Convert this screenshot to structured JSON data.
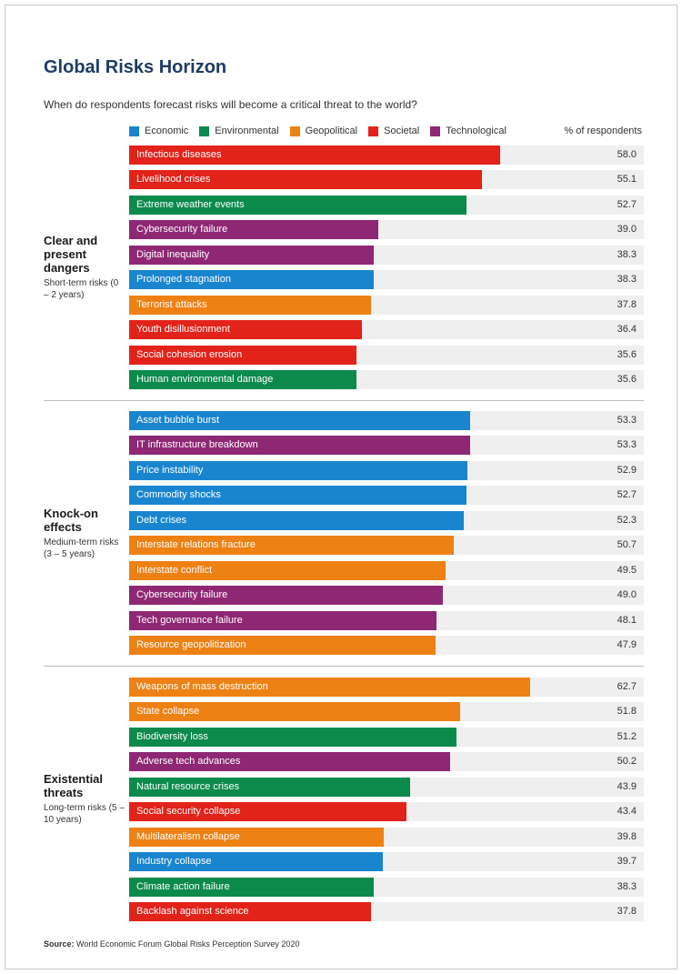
{
  "header": {
    "title": "Global Risks Horizon",
    "subtitle": "When do respondents forecast risks will become a critical threat to the world?",
    "unit_label": "% of respondents"
  },
  "legend": [
    {
      "label": "Economic",
      "color": "#1a85cf"
    },
    {
      "label": "Environmental",
      "color": "#0b8a4c"
    },
    {
      "label": "Geopolitical",
      "color": "#ee8114"
    },
    {
      "label": "Societal",
      "color": "#e2231a"
    },
    {
      "label": "Technological",
      "color": "#8e2774"
    }
  ],
  "colors": {
    "Economic": "#1a85cf",
    "Environmental": "#0b8a4c",
    "Geopolitical": "#ee8114",
    "Societal": "#e2231a",
    "Technological": "#8e2774"
  },
  "source": {
    "prefix": "Source:",
    "text": " World Economic Forum Global Risks Perception Survey 2020"
  },
  "chart_data": {
    "type": "bar",
    "orientation": "horizontal",
    "xlim": [
      0,
      80
    ],
    "groups": [
      {
        "title": "Clear and present dangers",
        "subtitle": "Short-term risks (0 – 2 years)",
        "categories": [
          "Infectious diseases",
          "Livelihood crises",
          "Extreme weather events",
          "Cybersecurity failure",
          "Digital inequality",
          "Prolonged stagnation",
          "Terrorist attacks",
          "Youth disillusionment",
          "Social cohesion erosion",
          "Human environmental damage"
        ],
        "values": [
          58.0,
          55.1,
          52.7,
          39.0,
          38.3,
          38.3,
          37.8,
          36.4,
          35.6,
          35.6
        ],
        "value_labels": [
          "58.0",
          "55.1",
          "52.7",
          "39.0",
          "38.3",
          "38.3",
          "37.8",
          "36.4",
          "35.6",
          "35.6"
        ],
        "risk_types": [
          "Societal",
          "Societal",
          "Environmental",
          "Technological",
          "Technological",
          "Economic",
          "Geopolitical",
          "Societal",
          "Societal",
          "Environmental"
        ]
      },
      {
        "title": "Knock-on effects",
        "subtitle": "Medium-term risks (3 – 5 years)",
        "categories": [
          "Asset bubble burst",
          "IT infrastructure breakdown",
          "Price instability",
          "Commodity shocks",
          "Debt crises",
          "Interstate relations fracture",
          "Interstate conflict",
          "Cybersecurity failure",
          "Tech governance failure",
          "Resource geopolitization"
        ],
        "values": [
          53.3,
          53.3,
          52.9,
          52.7,
          52.3,
          50.7,
          49.5,
          49.0,
          48.1,
          47.9
        ],
        "value_labels": [
          "53.3",
          "53.3",
          "52.9",
          "52.7",
          "52.3",
          "50.7",
          "49.5",
          "49.0",
          "48.1",
          "47.9"
        ],
        "risk_types": [
          "Economic",
          "Technological",
          "Economic",
          "Economic",
          "Economic",
          "Geopolitical",
          "Geopolitical",
          "Technological",
          "Technological",
          "Geopolitical"
        ]
      },
      {
        "title": "Existential threats",
        "subtitle": "Long-term risks (5 – 10 years)",
        "categories": [
          "Weapons of mass destruction",
          "State collapse",
          "Biodiversity loss",
          "Adverse tech advances",
          "Natural resource crises",
          "Social security collapse",
          "Multilateralism collapse",
          "Industry collapse",
          "Climate action failure",
          "Backlash against science"
        ],
        "values": [
          62.7,
          51.8,
          51.2,
          50.2,
          43.9,
          43.4,
          39.8,
          39.7,
          38.3,
          37.8
        ],
        "value_labels": [
          "62.7",
          "51.8",
          "51.2",
          "50.2",
          "43.9",
          "43.4",
          "39.8",
          "39.7",
          "38.3",
          "37.8"
        ],
        "risk_types": [
          "Geopolitical",
          "Geopolitical",
          "Environmental",
          "Technological",
          "Environmental",
          "Societal",
          "Geopolitical",
          "Economic",
          "Environmental",
          "Societal"
        ]
      }
    ]
  }
}
